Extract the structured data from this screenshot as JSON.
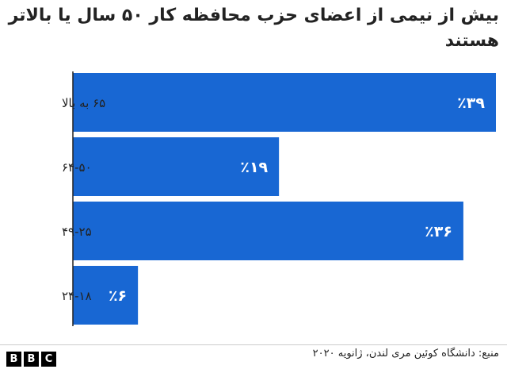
{
  "title": "بیش از نیمی از اعضای حزب محافظه کار ۵۰ سال یا بالاتر هستند",
  "source": "منبع: دانشگاه کوئین مری لندن، ژانویه ۲۰۲۰",
  "logo": [
    "B",
    "B",
    "C"
  ],
  "colors": {
    "bar": "#1867d3",
    "bar_label": "#ffffff",
    "axis": "#222222",
    "text": "#222222"
  },
  "chart_data": {
    "type": "bar",
    "orientation": "horizontal",
    "categories": [
      "۶۵ به بالا",
      "۶۴-۵۰",
      "۴۹-۲۵",
      "۲۴-۱۸"
    ],
    "values": [
      39,
      19,
      36,
      6
    ],
    "value_labels": [
      "٪۳۹",
      "٪۱۹",
      "٪۳۶",
      "٪۶"
    ],
    "xlim": [
      0,
      39
    ],
    "grid": false,
    "legend": "none"
  }
}
